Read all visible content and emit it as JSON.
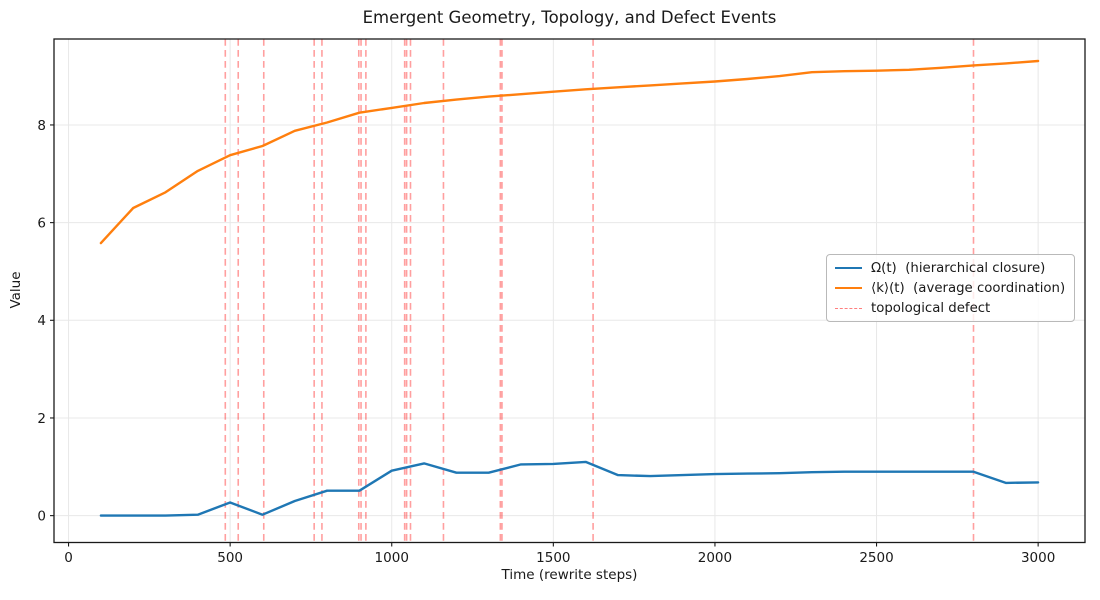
{
  "title": "Emergent Geometry, Topology, and Defect Events",
  "axes": {
    "xlabel": "Time (rewrite steps)",
    "ylabel": "Value"
  },
  "legend": {
    "items": [
      {
        "label": "Ω(t)  (hierarchical closure)",
        "style": "solid-blue"
      },
      {
        "label": "⟨k⟩(t)  (average coordination)",
        "style": "solid-orange"
      },
      {
        "label": "topological defect",
        "style": "dashed-red"
      }
    ]
  },
  "chart_data": {
    "type": "line",
    "title": "Emergent Geometry, Topology, and Defect Events",
    "xlabel": "Time (rewrite steps)",
    "ylabel": "Value",
    "x": [
      100,
      200,
      300,
      400,
      500,
      600,
      700,
      800,
      900,
      1000,
      1100,
      1200,
      1300,
      1400,
      1500,
      1600,
      1700,
      1800,
      1900,
      2000,
      2100,
      2200,
      2300,
      2400,
      2500,
      2600,
      2700,
      2800,
      2900,
      3000
    ],
    "series": [
      {
        "id": "omega",
        "name": "Ω(t)  (hierarchical closure)",
        "color": "#1f77b4",
        "values": [
          0.0,
          0.0,
          0.0,
          0.02,
          0.27,
          0.02,
          0.3,
          0.51,
          0.51,
          0.92,
          1.07,
          0.88,
          0.88,
          1.05,
          1.06,
          1.1,
          0.83,
          0.81,
          0.83,
          0.85,
          0.86,
          0.87,
          0.89,
          0.9,
          0.9,
          0.9,
          0.9,
          0.9,
          0.67,
          0.68
        ]
      },
      {
        "id": "kavg",
        "name": "⟨k⟩(t)  (average coordination)",
        "color": "#ff7f0e",
        "values": [
          5.58,
          6.3,
          6.62,
          7.06,
          7.38,
          7.57,
          7.88,
          8.05,
          8.25,
          8.35,
          8.45,
          8.52,
          8.58,
          8.63,
          8.68,
          8.73,
          8.77,
          8.81,
          8.85,
          8.89,
          8.94,
          9.0,
          9.08,
          9.1,
          9.11,
          9.13,
          9.17,
          9.22,
          9.26,
          9.31
        ]
      }
    ],
    "defects": {
      "name": "topological defect",
      "color": "#ff2a2a",
      "opacity": 0.45,
      "times": [
        485,
        525,
        604,
        760,
        784,
        898,
        905,
        920,
        1040,
        1046,
        1058,
        1160,
        1336,
        1341,
        1623,
        2800
      ]
    },
    "xlim": [
      -45,
      3145
    ],
    "ylim": [
      -0.55,
      9.76
    ],
    "xticks": [
      0,
      500,
      1000,
      1500,
      2000,
      2500,
      3000
    ],
    "yticks": [
      0,
      2,
      4,
      6,
      8
    ],
    "grid": true,
    "grid_color": "#e8e8e8",
    "legend_position": "center right"
  }
}
